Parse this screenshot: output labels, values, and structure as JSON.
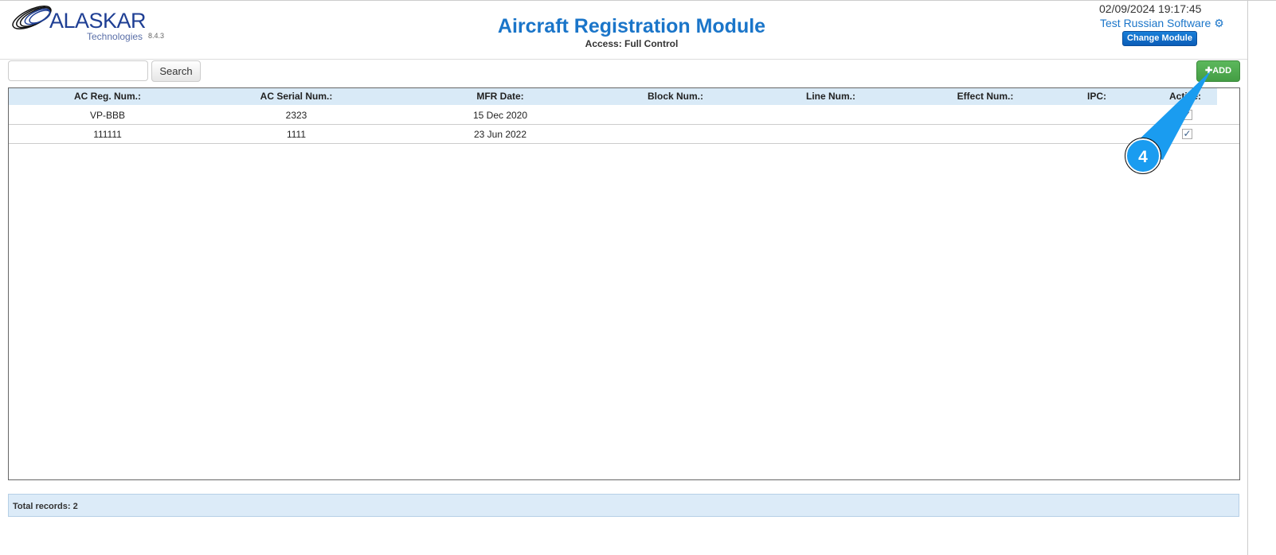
{
  "header": {
    "logo_text": "ALASKAR",
    "logo_sub": "Technologies",
    "version": "8.4.3",
    "title": "Aircraft Registration Module",
    "access": "Access: Full Control",
    "datetime": "02/09/2024 19:17:45",
    "company": "Test Russian Software",
    "change_module": "Change Module"
  },
  "toolbar": {
    "search_value": "",
    "search_label": "Search",
    "add_label": "ADD",
    "add_icon": "plus-icon"
  },
  "table": {
    "columns": [
      "AC Reg. Num.:",
      "AC Serial Num.:",
      "MFR Date:",
      "Block Num.:",
      "Line Num.:",
      "Effect Num.:",
      "IPC:",
      "Active:"
    ],
    "rows": [
      [
        "VP-BBB",
        "2323",
        "15 Dec 2020",
        "",
        "",
        "",
        "",
        true
      ],
      [
        "111111",
        "1111",
        "23 Jun 2022",
        "",
        "",
        "",
        "",
        true
      ]
    ]
  },
  "footer": {
    "total": "Total records: 2"
  },
  "annotation": {
    "number": "4",
    "color": "#1a9cf0"
  }
}
